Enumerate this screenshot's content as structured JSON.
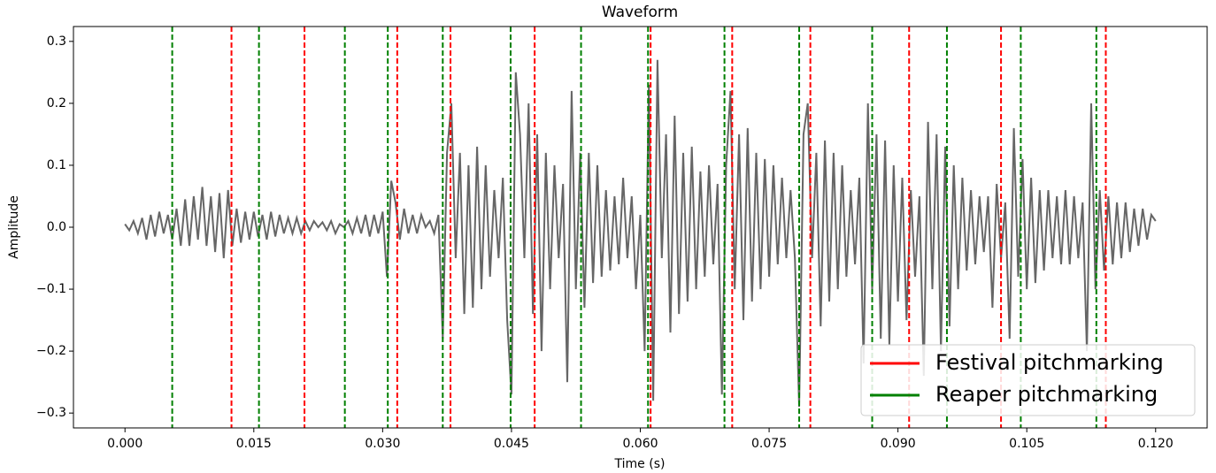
{
  "chart_data": {
    "type": "line",
    "title": "Waveform",
    "x_label": "Time (s)",
    "y_label": "Amplitude",
    "xlim": [
      -0.006,
      0.126
    ],
    "ylim": [
      -0.324,
      0.324
    ],
    "xticks": [
      {
        "value": 0,
        "label": "0.000"
      },
      {
        "value": 0.015,
        "label": "0.015"
      },
      {
        "value": 0.03,
        "label": "0.030"
      },
      {
        "value": 0.045,
        "label": "0.045"
      },
      {
        "value": 0.06,
        "label": "0.060"
      },
      {
        "value": 0.075,
        "label": "0.075"
      },
      {
        "value": 0.09,
        "label": "0.090"
      },
      {
        "value": 0.105,
        "label": "0.105"
      },
      {
        "value": 0.12,
        "label": "0.120"
      }
    ],
    "yticks": [
      {
        "value": -0.3,
        "label": "−0.3"
      },
      {
        "value": -0.2,
        "label": "−0.2"
      },
      {
        "value": -0.1,
        "label": "−0.1"
      },
      {
        "value": 0,
        "label": "0.0"
      },
      {
        "value": 0.1,
        "label": "0.1"
      },
      {
        "value": 0.2,
        "label": "0.2"
      },
      {
        "value": 0.3,
        "label": "0.3"
      }
    ],
    "legend": "lower right",
    "waveform": {
      "color": "#666666",
      "x": [
        0,
        0.0005,
        0.001,
        0.0015,
        0.002,
        0.0025,
        0.003,
        0.0035,
        0.004,
        0.0045,
        0.005,
        0.0055,
        0.006,
        0.0065,
        0.007,
        0.0075,
        0.008,
        0.0085,
        0.009,
        0.0095,
        0.01,
        0.0105,
        0.011,
        0.0115,
        0.012,
        0.0125,
        0.013,
        0.0135,
        0.014,
        0.0145,
        0.015,
        0.0155,
        0.016,
        0.0165,
        0.017,
        0.0175,
        0.018,
        0.0185,
        0.019,
        0.0195,
        0.02,
        0.0205,
        0.021,
        0.0215,
        0.022,
        0.0225,
        0.023,
        0.0235,
        0.024,
        0.0245,
        0.025,
        0.0255,
        0.026,
        0.0265,
        0.027,
        0.0275,
        0.028,
        0.0285,
        0.029,
        0.0295,
        0.03,
        0.0305,
        0.031,
        0.0315,
        0.032,
        0.0325,
        0.033,
        0.0335,
        0.034,
        0.0345,
        0.035,
        0.0355,
        0.036,
        0.0365,
        0.037,
        0.0375,
        0.038,
        0.0385,
        0.039,
        0.0395,
        0.04,
        0.0405,
        0.041,
        0.0415,
        0.042,
        0.0425,
        0.043,
        0.0435,
        0.044,
        0.0445,
        0.045,
        0.0455,
        0.046,
        0.0465,
        0.047,
        0.0475,
        0.048,
        0.0485,
        0.049,
        0.0495,
        0.05,
        0.0505,
        0.051,
        0.0515,
        0.052,
        0.0525,
        0.053,
        0.0535,
        0.054,
        0.0545,
        0.055,
        0.0555,
        0.056,
        0.0565,
        0.057,
        0.0575,
        0.058,
        0.0585,
        0.059,
        0.0595,
        0.06,
        0.0605,
        0.061,
        0.0615,
        0.062,
        0.0625,
        0.063,
        0.0635,
        0.064,
        0.0645,
        0.065,
        0.0655,
        0.066,
        0.0665,
        0.067,
        0.0675,
        0.068,
        0.0685,
        0.069,
        0.0695,
        0.07,
        0.0705,
        0.071,
        0.0715,
        0.072,
        0.0725,
        0.073,
        0.0735,
        0.074,
        0.0745,
        0.075,
        0.0755,
        0.076,
        0.0765,
        0.077,
        0.0775,
        0.078,
        0.0785,
        0.079,
        0.0795,
        0.08,
        0.0805,
        0.081,
        0.0815,
        0.082,
        0.0825,
        0.083,
        0.0835,
        0.084,
        0.0845,
        0.085,
        0.0855,
        0.086,
        0.0865,
        0.087,
        0.0875,
        0.088,
        0.0885,
        0.089,
        0.0895,
        0.09,
        0.0905,
        0.091,
        0.0915,
        0.092,
        0.0925,
        0.093,
        0.0935,
        0.094,
        0.0945,
        0.095,
        0.0955,
        0.096,
        0.0965,
        0.097,
        0.0975,
        0.098,
        0.0985,
        0.099,
        0.0995,
        0.1,
        0.1005,
        0.101,
        0.1015,
        0.102,
        0.1025,
        0.103,
        0.1035,
        0.104,
        0.1045,
        0.105,
        0.1055,
        0.106,
        0.1065,
        0.107,
        0.1075,
        0.108,
        0.1085,
        0.109,
        0.1095,
        0.11,
        0.1105,
        0.111,
        0.1115,
        0.112,
        0.1125,
        0.113,
        0.1135,
        0.114,
        0.1145,
        0.115,
        0.1155,
        0.116,
        0.1165,
        0.117,
        0.1175,
        0.118,
        0.1185,
        0.119,
        0.1195,
        0.12
      ],
      "values": [
        0.005,
        -0.005,
        0.01,
        -0.01,
        0.015,
        -0.02,
        0.02,
        -0.015,
        0.025,
        -0.01,
        0.02,
        -0.02,
        0.03,
        -0.03,
        0.045,
        -0.03,
        0.05,
        -0.02,
        0.065,
        -0.03,
        0.05,
        -0.04,
        0.055,
        -0.05,
        0.06,
        -0.03,
        0.03,
        -0.025,
        0.025,
        -0.02,
        0.025,
        -0.015,
        0.02,
        -0.02,
        0.025,
        -0.015,
        0.02,
        -0.01,
        0.015,
        -0.01,
        0.015,
        -0.01,
        0.01,
        -0.005,
        0.01,
        0,
        0.008,
        -0.005,
        0.01,
        -0.01,
        0.005,
        0,
        0.01,
        -0.01,
        0.015,
        -0.01,
        0.02,
        -0.015,
        0.02,
        -0.01,
        0.025,
        -0.08,
        0.075,
        0.04,
        -0.02,
        0.03,
        -0.01,
        0.02,
        -0.01,
        0.02,
        0,
        0.01,
        -0.01,
        0.02,
        -0.18,
        0.12,
        0.2,
        -0.05,
        0.12,
        -0.14,
        0.1,
        -0.13,
        0.13,
        -0.1,
        0.1,
        -0.08,
        0.06,
        -0.05,
        0.08,
        -0.15,
        -0.27,
        0.25,
        0.15,
        -0.05,
        0.2,
        -0.14,
        0.15,
        -0.2,
        0.12,
        -0.1,
        0.1,
        -0.05,
        0.07,
        -0.25,
        0.22,
        -0.1,
        0.12,
        -0.13,
        0.12,
        -0.09,
        0.1,
        -0.08,
        0.06,
        -0.07,
        0.05,
        -0.06,
        0.08,
        -0.05,
        0.05,
        -0.1,
        0.02,
        -0.2,
        0.23,
        -0.28,
        0.27,
        -0.05,
        0.15,
        -0.17,
        0.18,
        -0.14,
        0.12,
        -0.12,
        0.13,
        -0.1,
        0.09,
        -0.08,
        0.1,
        -0.06,
        0.07,
        -0.27,
        0.1,
        0.22,
        -0.1,
        0.15,
        -0.15,
        0.16,
        -0.12,
        0.12,
        -0.1,
        0.11,
        -0.08,
        0.1,
        -0.06,
        0.08,
        -0.05,
        0.06,
        -0.05,
        -0.29,
        0.15,
        0.2,
        -0.05,
        0.12,
        -0.16,
        0.14,
        -0.12,
        0.12,
        -0.1,
        0.1,
        -0.08,
        0.06,
        -0.06,
        0.08,
        -0.22,
        0.2,
        -0.1,
        0.15,
        -0.18,
        0.14,
        -0.19,
        0.1,
        -0.12,
        0.08,
        -0.15,
        0.06,
        -0.08,
        0.05,
        -0.24,
        0.17,
        -0.1,
        0.15,
        -0.2,
        0.13,
        -0.16,
        0.1,
        -0.1,
        0.08,
        -0.07,
        0.06,
        -0.06,
        0.05,
        -0.04,
        0.05,
        -0.13,
        0.07,
        -0.05,
        0.04,
        -0.18,
        0.16,
        -0.08,
        0.11,
        -0.1,
        0.08,
        -0.09,
        0.06,
        -0.07,
        0.06,
        -0.05,
        0.05,
        -0.06,
        0.06,
        -0.06,
        0.05,
        -0.05,
        0.04,
        -0.2,
        0.2,
        -0.1,
        0.06,
        -0.07,
        0.05,
        -0.06,
        0.04,
        -0.05,
        0.04,
        -0.04,
        0.03,
        -0.03,
        0.03,
        -0.02,
        0.02,
        0.01
      ]
    },
    "series": [
      {
        "name": "Festival pitchmarking",
        "color": "#ff0000",
        "values": [
          0.0124,
          0.0209,
          0.0317,
          0.0379,
          0.0477,
          0.0612,
          0.0707,
          0.0798,
          0.0913,
          0.102,
          0.1142
        ]
      },
      {
        "name": "Reaper pitchmarking",
        "color": "#008000",
        "values": [
          0.0055,
          0.0156,
          0.0256,
          0.0306,
          0.037,
          0.0449,
          0.0531,
          0.0609,
          0.0698,
          0.0785,
          0.087,
          0.0957,
          0.1043,
          0.1131
        ]
      }
    ]
  }
}
